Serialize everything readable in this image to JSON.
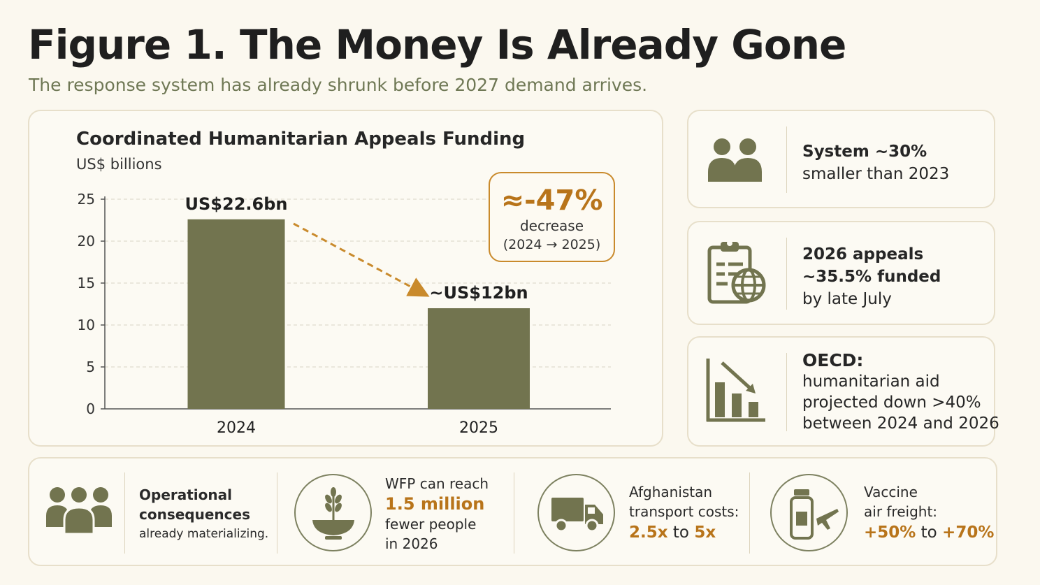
{
  "header": {
    "title": "Figure 1. The Money Is Already Gone",
    "subtitle": "The response system has already shrunk before 2027 demand arrives."
  },
  "chart_data": {
    "type": "bar",
    "title": "Coordinated Humanitarian Appeals Funding",
    "ylabel": "US$ billions",
    "xlabel": "",
    "categories": [
      "2024",
      "2025"
    ],
    "values": [
      22.6,
      12
    ],
    "data_labels": [
      "US$22.6bn",
      "~US$12bn"
    ],
    "ylim": [
      0,
      25
    ],
    "yticks": [
      "0",
      "5",
      "10",
      "15",
      "20",
      "25"
    ],
    "grid": true,
    "bar_color": "#72744f",
    "annotation": {
      "value": "≈-47%",
      "line1": "decrease",
      "line2": "(2024 → 2025)",
      "color": "#c98a2c"
    }
  },
  "side_cards": [
    {
      "icon": "people-icon",
      "line1": "System ~30%",
      "line2": "smaller than 2023"
    },
    {
      "icon": "clipboard-globe-icon",
      "line1": "2026 appeals",
      "line2": "~35.5% funded",
      "line3": "by late July"
    },
    {
      "icon": "declining-bars-icon",
      "line1": "OECD:",
      "line2": "humanitarian aid",
      "line3": "projected down >40%",
      "line4": "between 2024 and 2026"
    }
  ],
  "bottom": {
    "ops": {
      "icon": "group-icon",
      "line1": "Operational",
      "line2": "consequences",
      "line3": "already materializing."
    },
    "wfp": {
      "icon": "wheat-bowl-icon",
      "line1": "WFP can reach",
      "value": "1.5 million",
      "line3": "fewer people",
      "line4": "in 2026"
    },
    "afg": {
      "icon": "truck-icon",
      "line1": "Afghanistan",
      "line2": "transport costs:",
      "v1": "2.5x",
      "joiner": "to",
      "v2": "5x"
    },
    "vac": {
      "icon": "vaccine-plane-icon",
      "line1": "Vaccine",
      "line2": "air freight:",
      "v1": "+50%",
      "joiner": "to",
      "v2": "+70%"
    }
  },
  "colors": {
    "accent": "#b8741a",
    "olive": "#72744f",
    "background": "#fbf8ef"
  }
}
